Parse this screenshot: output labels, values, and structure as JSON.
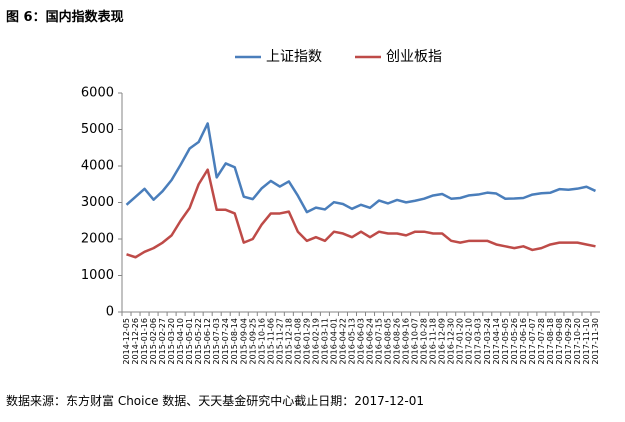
{
  "title": "图 6：国内指数表现",
  "source": "数据来源：东方财富 Choice 数据、天天基金研究中心截止日期：2017-12-01",
  "chart_data": {
    "type": "line",
    "categories": [
      "2014-12-05",
      "2014-12-26",
      "2015-01-16",
      "2015-02-06",
      "2015-02-27",
      "2015-03-20",
      "2015-04-10",
      "2015-05-01",
      "2015-05-22",
      "2015-06-12",
      "2015-07-03",
      "2015-07-24",
      "2015-08-14",
      "2015-09-04",
      "2015-09-25",
      "2015-10-16",
      "2015-11-06",
      "2015-11-27",
      "2015-12-18",
      "2016-01-08",
      "2016-01-29",
      "2016-02-19",
      "2016-03-11",
      "2016-04-01",
      "2016-04-22",
      "2016-05-13",
      "2016-06-03",
      "2016-06-24",
      "2016-07-15",
      "2016-08-05",
      "2016-08-26",
      "2016-09-16",
      "2016-10-07",
      "2016-10-28",
      "2016-11-18",
      "2016-12-09",
      "2016-12-30",
      "2017-01-20",
      "2017-02-10",
      "2017-03-03",
      "2017-03-24",
      "2017-04-14",
      "2017-05-05",
      "2017-05-26",
      "2017-06-16",
      "2017-07-07",
      "2017-07-28",
      "2017-08-18",
      "2017-09-08",
      "2017-09-29",
      "2017-10-20",
      "2017-11-10",
      "2017-11-30"
    ],
    "series": [
      {
        "name": "上证指数",
        "color": "#4a7ebb",
        "values": [
          2938,
          3157,
          3376,
          3076,
          3310,
          3617,
          4034,
          4480,
          4657,
          5166,
          3687,
          4070,
          3965,
          3160,
          3092,
          3391,
          3590,
          3436,
          3578,
          3186,
          2737,
          2860,
          2810,
          3009,
          2959,
          2827,
          2938,
          2854,
          3054,
          2976,
          3070,
          3003,
          3048,
          3104,
          3192,
          3232,
          3104,
          3123,
          3196,
          3218,
          3269,
          3246,
          3103,
          3108,
          3123,
          3217,
          3253,
          3268,
          3365,
          3349,
          3379,
          3432,
          3317
        ]
      },
      {
        "name": "创业板指",
        "color": "#be4b48",
        "values": [
          1580,
          1500,
          1650,
          1750,
          1900,
          2100,
          2500,
          2850,
          3500,
          3900,
          2800,
          2800,
          2700,
          1900,
          2000,
          2400,
          2700,
          2700,
          2750,
          2200,
          1950,
          2050,
          1950,
          2200,
          2150,
          2050,
          2200,
          2050,
          2200,
          2150,
          2150,
          2100,
          2200,
          2200,
          2150,
          2150,
          1950,
          1900,
          1950,
          1950,
          1950,
          1850,
          1800,
          1750,
          1800,
          1700,
          1750,
          1850,
          1900,
          1900,
          1900,
          1850,
          1800
        ]
      }
    ],
    "ylim": [
      0,
      6000
    ],
    "yticks": [
      0,
      1000,
      2000,
      3000,
      4000,
      5000,
      6000
    ],
    "grid": false,
    "legend": "top"
  }
}
